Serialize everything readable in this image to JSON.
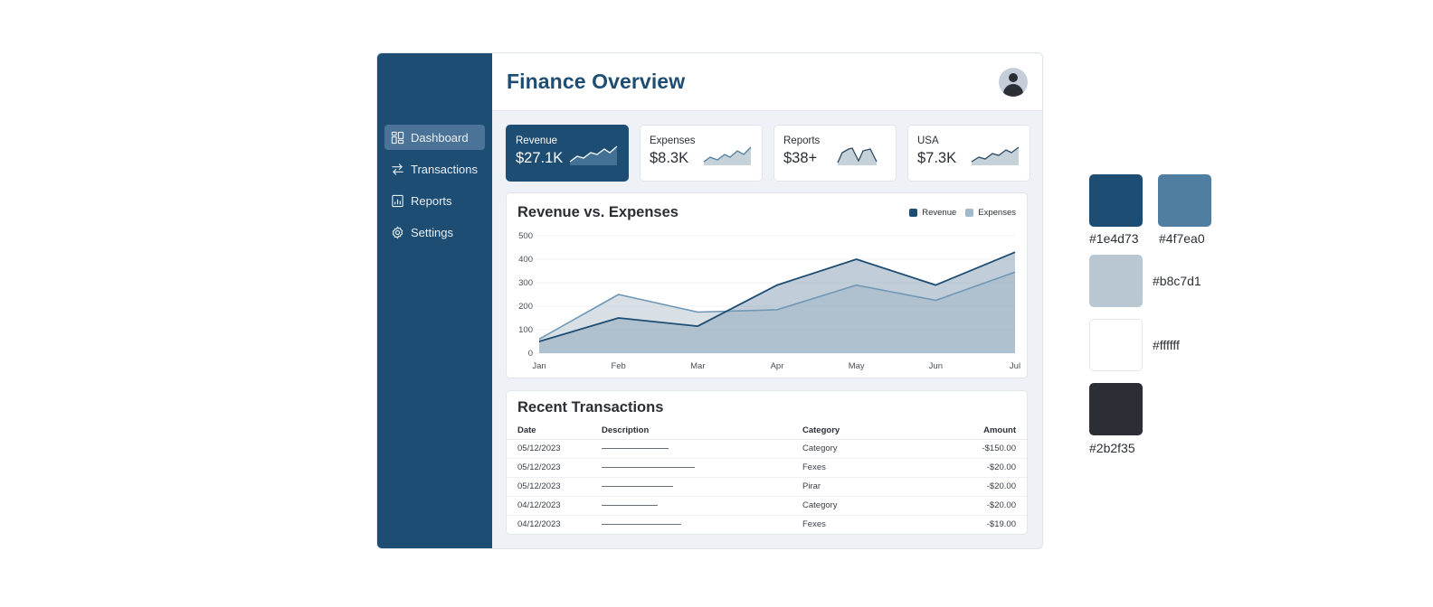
{
  "app": {
    "title": "Finance Overview"
  },
  "sidebar": {
    "items": [
      {
        "label": "Dashboard",
        "icon": "dashboard-grid-icon",
        "active": true
      },
      {
        "label": "Transactions",
        "icon": "swap-arrows-icon",
        "active": false
      },
      {
        "label": "Reports",
        "icon": "report-chart-icon",
        "active": false
      },
      {
        "label": "Settings",
        "icon": "gear-icon",
        "active": false
      }
    ]
  },
  "header": {
    "title": "Finance Overview",
    "avatar_icon": "user-avatar-icon"
  },
  "kpis": [
    {
      "label": "Revenue",
      "value": "$27.1K",
      "active": true
    },
    {
      "label": "Expenses",
      "value": "$8.3K",
      "active": false
    },
    {
      "label": "Reports",
      "value": "$38+",
      "active": false
    },
    {
      "label": "USA",
      "value": "$7.3K",
      "active": false
    }
  ],
  "chart_data": {
    "type": "area",
    "title": "Revenue vs. Expenses",
    "categories": [
      "Jan",
      "Feb",
      "Mar",
      "Apr",
      "May",
      "Jun",
      "Jul"
    ],
    "series": [
      {
        "name": "Revenue",
        "color": "#1e4d73",
        "values": [
          50,
          150,
          115,
          290,
          400,
          290,
          430
        ]
      },
      {
        "name": "Expenses",
        "color": "#4f7ea0",
        "values": [
          60,
          250,
          175,
          185,
          290,
          225,
          345
        ]
      }
    ],
    "xlabel": "",
    "ylabel": "",
    "yticks": [
      0,
      100,
      200,
      300,
      400,
      500
    ],
    "ylim": [
      0,
      500
    ],
    "grid": true,
    "legend_position": "top-right"
  },
  "chart": {
    "title": "Revenue vs. Expenses",
    "legend": [
      "Revenue",
      "Expenses"
    ],
    "yticks": [
      "500",
      "400",
      "300",
      "200",
      "100",
      "0"
    ],
    "xticks": [
      "Jan",
      "Feb",
      "Mar",
      "Apr",
      "May",
      "Jun",
      "Jul"
    ]
  },
  "transactions": {
    "title": "Recent Transactions",
    "columns": [
      "Date",
      "Description",
      "Category",
      "Amount"
    ],
    "rows": [
      {
        "date": "05/12/2023",
        "description": "",
        "category": "Category",
        "amount": "-$150.00"
      },
      {
        "date": "05/12/2023",
        "description": "",
        "category": "Fexes",
        "amount": "-$20.00"
      },
      {
        "date": "05/12/2023",
        "description": "",
        "category": "Pirar",
        "amount": "-$20.00"
      },
      {
        "date": "04/12/2023",
        "description": "",
        "category": "Category",
        "amount": "-$20.00"
      },
      {
        "date": "04/12/2023",
        "description": "",
        "category": "Fexes",
        "amount": "-$19.00"
      }
    ]
  },
  "palette": [
    {
      "hex": "#1e4d73",
      "label": "#1e4d73"
    },
    {
      "hex": "#4f7ea0",
      "label": "#4f7ea0"
    },
    {
      "hex": "#b8c7d1",
      "label": "#b8c7d1"
    },
    {
      "hex": "#ffffff",
      "label": "#ffffff"
    },
    {
      "hex": "#2b2f35",
      "label": "#2b2f35"
    }
  ]
}
